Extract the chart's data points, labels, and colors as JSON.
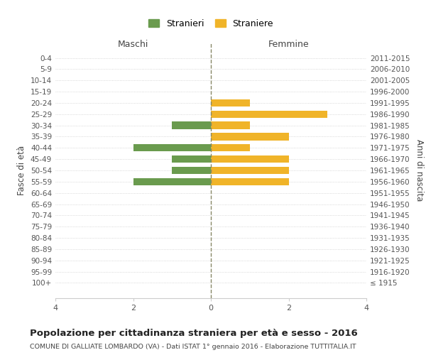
{
  "age_groups": [
    "0-4",
    "5-9",
    "10-14",
    "15-19",
    "20-24",
    "25-29",
    "30-34",
    "35-39",
    "40-44",
    "45-49",
    "50-54",
    "55-59",
    "60-64",
    "65-69",
    "70-74",
    "75-79",
    "80-84",
    "85-89",
    "90-94",
    "95-99",
    "100+"
  ],
  "birth_years": [
    "2011-2015",
    "2006-2010",
    "2001-2005",
    "1996-2000",
    "1991-1995",
    "1986-1990",
    "1981-1985",
    "1976-1980",
    "1971-1975",
    "1966-1970",
    "1961-1965",
    "1956-1960",
    "1951-1955",
    "1946-1950",
    "1941-1945",
    "1936-1940",
    "1931-1935",
    "1926-1930",
    "1921-1925",
    "1916-1920",
    "≤ 1915"
  ],
  "maschi": [
    0,
    0,
    0,
    0,
    0,
    0,
    1,
    0,
    2,
    1,
    1,
    2,
    0,
    0,
    0,
    0,
    0,
    0,
    0,
    0,
    0
  ],
  "femmine": [
    0,
    0,
    0,
    0,
    1,
    3,
    1,
    2,
    1,
    2,
    2,
    2,
    0,
    0,
    0,
    0,
    0,
    0,
    0,
    0,
    0
  ],
  "maschi_color": "#6a9b4e",
  "femmine_color": "#f0b429",
  "background_color": "#ffffff",
  "grid_color": "#cccccc",
  "center_line_color": "#888866",
  "title": "Popolazione per cittadinanza straniera per età e sesso - 2016",
  "subtitle": "COMUNE DI GALLIATE LOMBARDO (VA) - Dati ISTAT 1° gennaio 2016 - Elaborazione TUTTITALIA.IT",
  "xlabel_left": "Maschi",
  "xlabel_right": "Femmine",
  "ylabel_left": "Fasce di età",
  "ylabel_right": "Anni di nascita",
  "legend_stranieri": "Stranieri",
  "legend_straniere": "Straniere",
  "xlim": 4
}
